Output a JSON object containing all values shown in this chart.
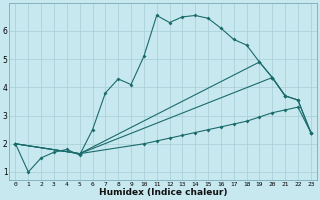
{
  "xlabel": "Humidex (Indice chaleur)",
  "bg_color": "#c8e8f0",
  "grid_color": "#a8cdd6",
  "line_color": "#1a6b6b",
  "xlim": [
    -0.5,
    23.5
  ],
  "ylim": [
    0.7,
    7.0
  ],
  "yticks": [
    1,
    2,
    3,
    4,
    5,
    6
  ],
  "xticks": [
    0,
    1,
    2,
    3,
    4,
    5,
    6,
    7,
    8,
    9,
    10,
    11,
    12,
    13,
    14,
    15,
    16,
    17,
    18,
    19,
    20,
    21,
    22,
    23
  ],
  "lines": [
    {
      "x": [
        0,
        1,
        2,
        3,
        4,
        5,
        6,
        7,
        8,
        9,
        10,
        11,
        12,
        13,
        14,
        15,
        16,
        17,
        18,
        19,
        20,
        21
      ],
      "y": [
        2.0,
        1.0,
        1.5,
        1.7,
        1.8,
        1.6,
        2.5,
        3.8,
        4.3,
        4.1,
        5.1,
        6.55,
        6.3,
        6.5,
        6.55,
        6.45,
        6.1,
        5.7,
        5.5,
        4.9,
        4.35,
        3.7
      ]
    },
    {
      "x": [
        0,
        5,
        19,
        20,
        21,
        22,
        23
      ],
      "y": [
        2.0,
        1.65,
        4.9,
        4.35,
        3.7,
        3.55,
        2.4
      ]
    },
    {
      "x": [
        0,
        5,
        20,
        21,
        22,
        23
      ],
      "y": [
        2.0,
        1.65,
        4.35,
        3.7,
        3.55,
        2.4
      ]
    },
    {
      "x": [
        0,
        5,
        10,
        11,
        12,
        13,
        14,
        15,
        16,
        17,
        18,
        19,
        20,
        21,
        22,
        23
      ],
      "y": [
        2.0,
        1.65,
        2.0,
        2.1,
        2.2,
        2.3,
        2.4,
        2.5,
        2.6,
        2.7,
        2.8,
        2.95,
        3.1,
        3.2,
        3.3,
        2.4
      ]
    }
  ]
}
